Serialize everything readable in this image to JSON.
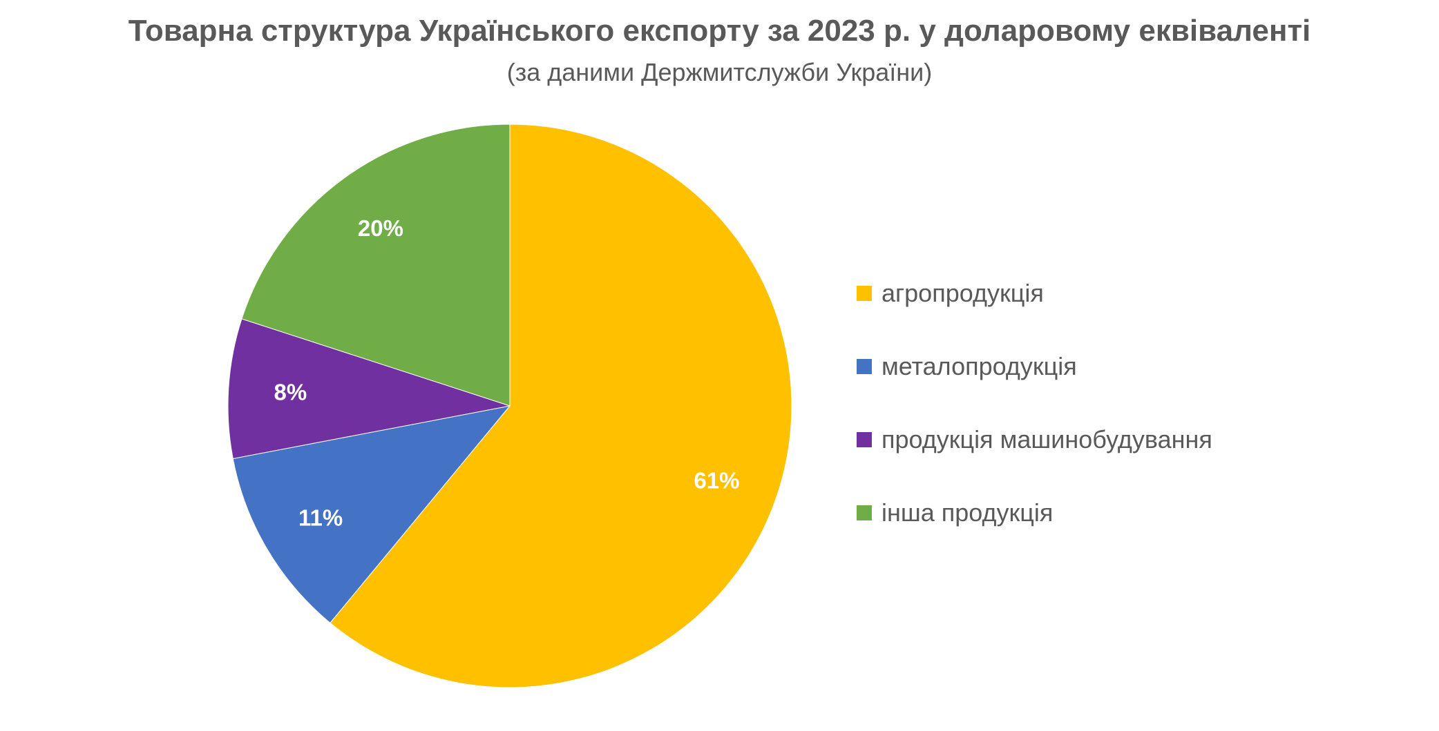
{
  "chart_data": {
    "type": "pie",
    "title": "Товарна структура Українського експорту за 2023 р. у доларовому еквіваленті",
    "subtitle": "(за даними Держмитслужби України)",
    "categories": [
      "агропродукція",
      "металопродукція",
      "продукція машинобудування",
      "інша продукція"
    ],
    "values": [
      61,
      11,
      8,
      20
    ],
    "data_labels": [
      "61%",
      "11%",
      "8%",
      "20%"
    ],
    "colors": [
      "#FFC000",
      "#4472C4",
      "#7030A0",
      "#70AD47"
    ],
    "start_angle": "12 o'clock",
    "direction": "clockwise",
    "legend_position": "right"
  }
}
